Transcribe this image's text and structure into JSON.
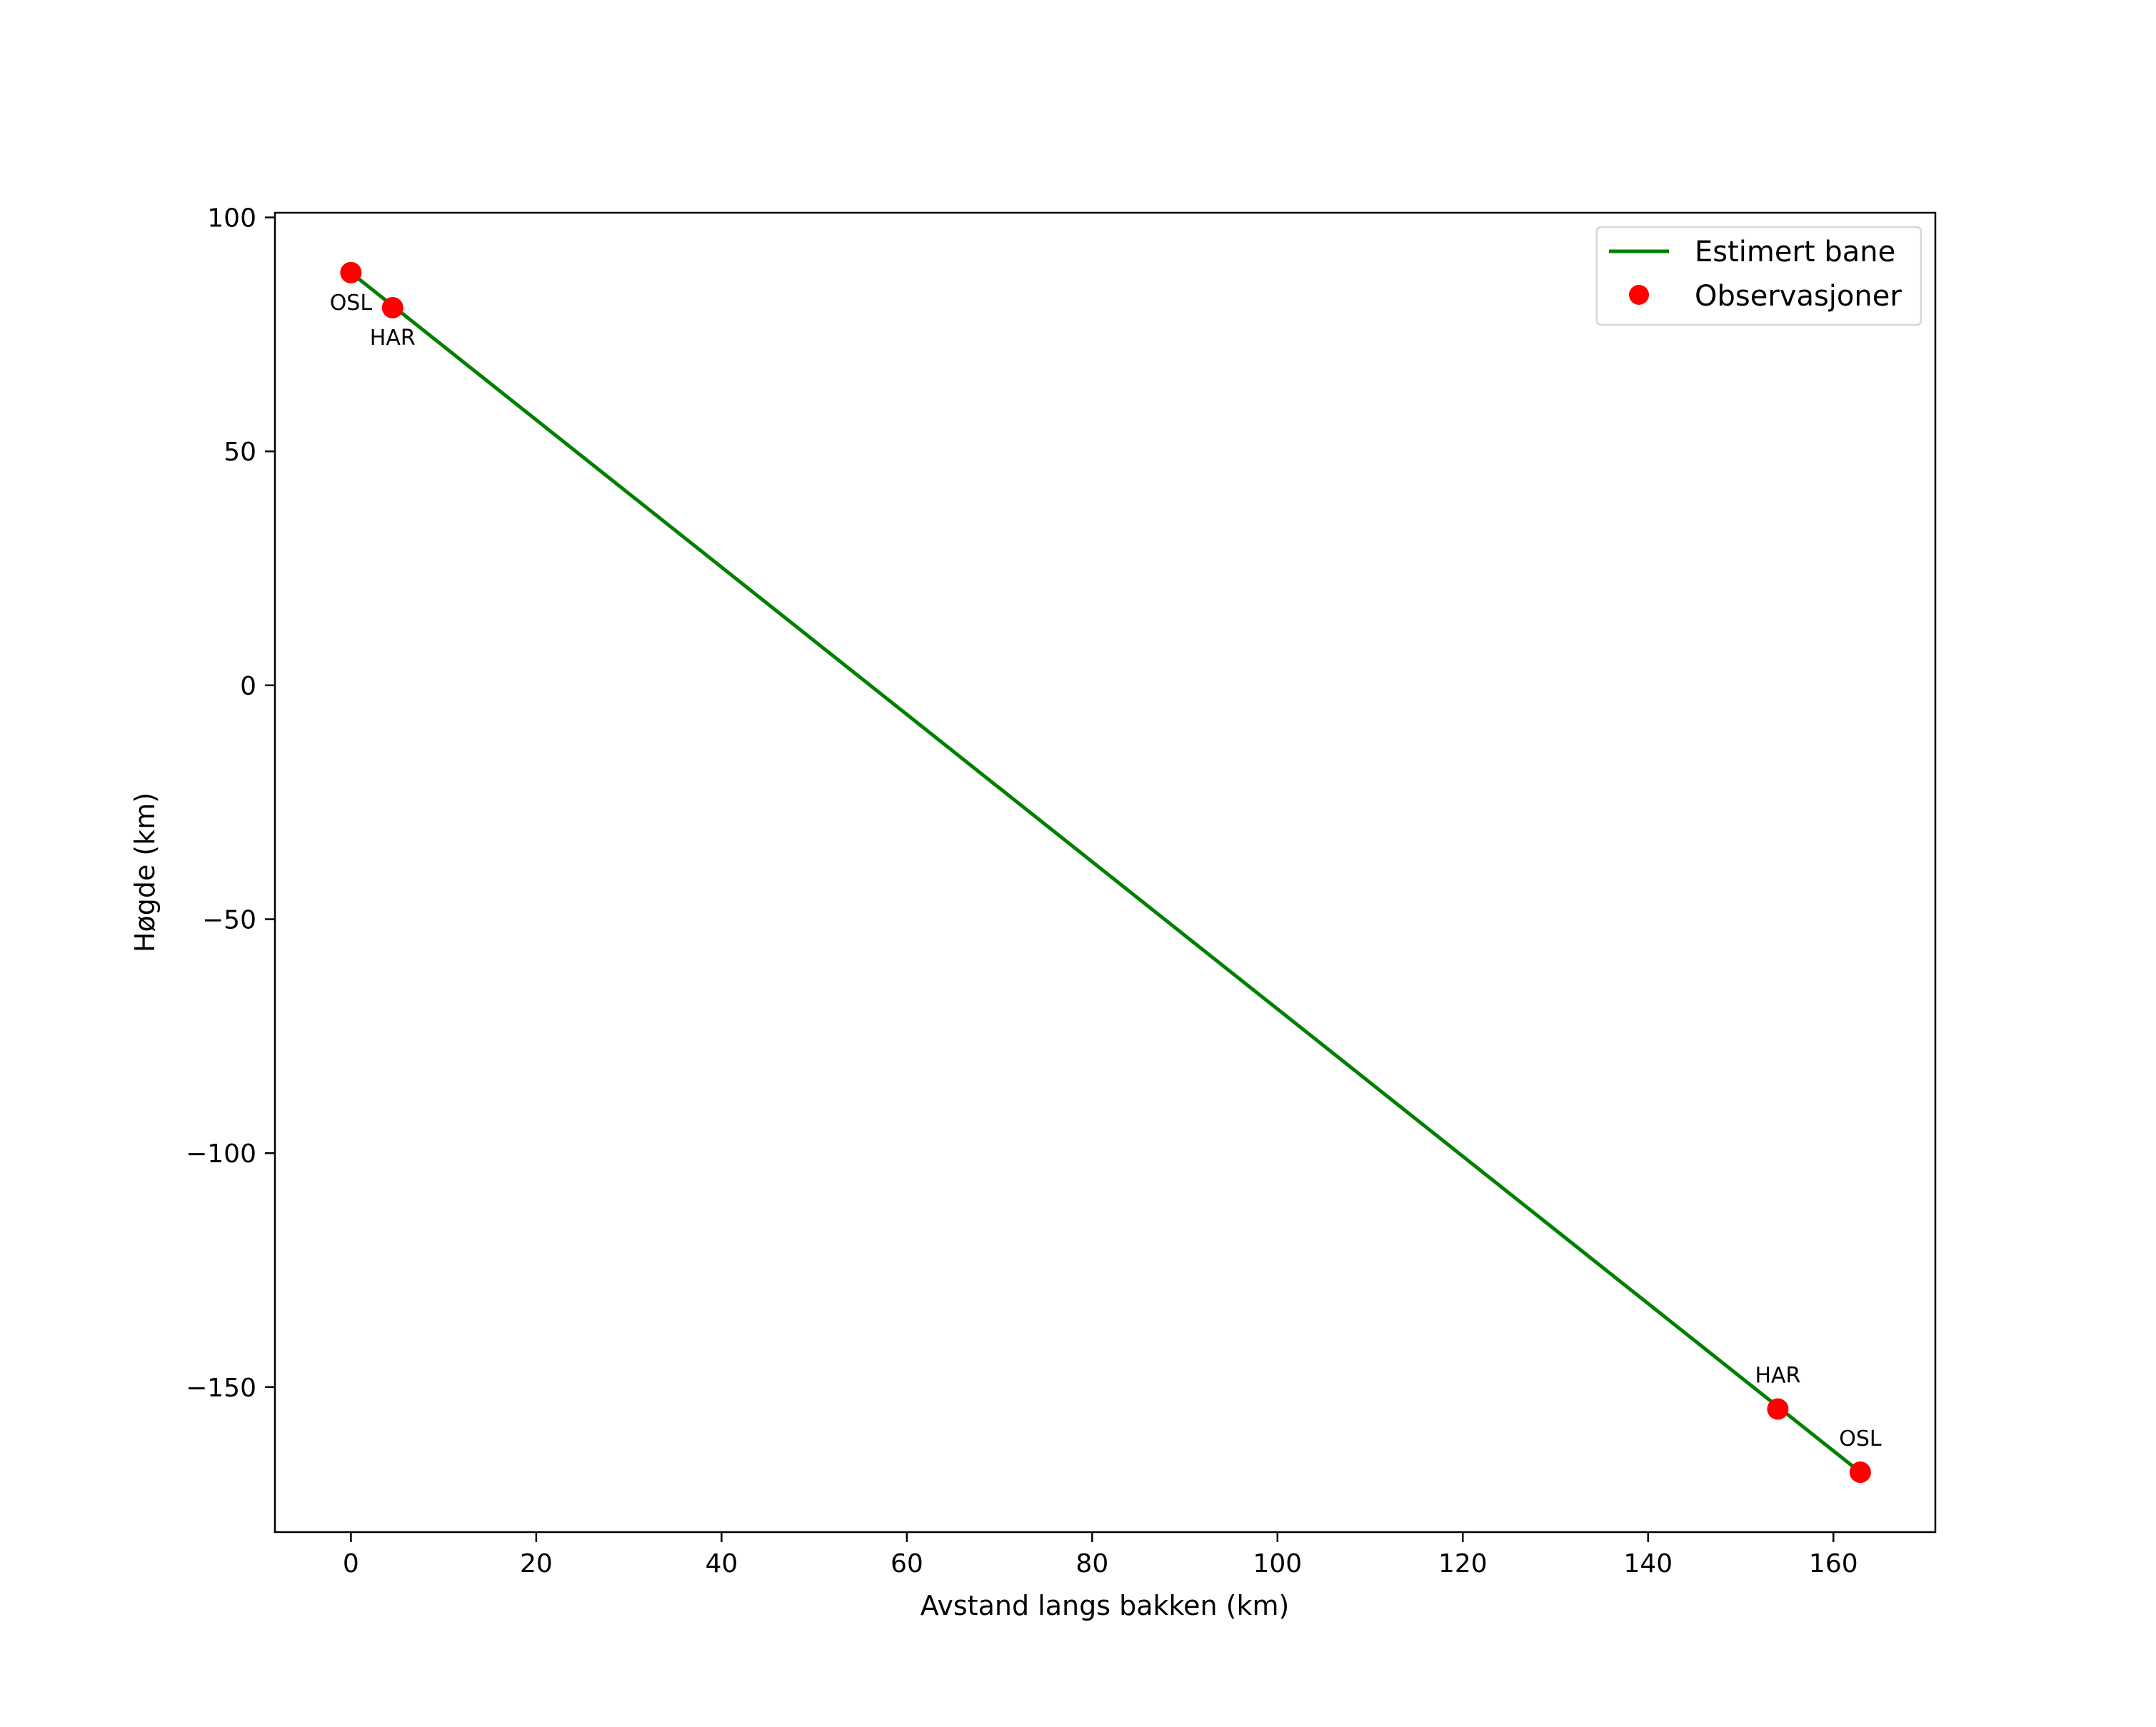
{
  "chart_data": {
    "type": "line",
    "title": "",
    "xlabel": "Avstand langs bakken (km)",
    "ylabel": "Høgde (km)",
    "xlim": [
      -8.2,
      171.0
    ],
    "ylim": [
      -181.0,
      101.0
    ],
    "xticks": [
      0,
      20,
      40,
      60,
      80,
      100,
      120,
      140,
      160
    ],
    "xtick_labels": [
      "0",
      "20",
      "40",
      "60",
      "80",
      "100",
      "120",
      "140",
      "160"
    ],
    "yticks": [
      100,
      50,
      0,
      -50,
      -100,
      -150
    ],
    "ytick_labels": [
      "100",
      "50",
      "0",
      "−50",
      "−100",
      "−150"
    ],
    "grid": false,
    "legend_position": "upper right",
    "series": [
      {
        "name": "Estimert bane",
        "kind": "line",
        "color": "#008000",
        "x": [
          0.0,
          162.9
        ],
        "y": [
          88.2,
          -168.2
        ]
      },
      {
        "name": "Observasjoner",
        "kind": "scatter",
        "color": "#ff0000",
        "points": [
          {
            "label": "OSL",
            "x": 0.0,
            "y": 88.2,
            "label_pos": "below-left"
          },
          {
            "label": "HAR",
            "x": 4.5,
            "y": 80.7,
            "label_pos": "below"
          },
          {
            "label": "HAR",
            "x": 154.0,
            "y": -154.7,
            "label_pos": "above"
          },
          {
            "label": "OSL",
            "x": 162.9,
            "y": -168.2,
            "label_pos": "above"
          }
        ]
      }
    ]
  },
  "legend": {
    "items": [
      {
        "label": "Estimert bane",
        "icon": "green-line-icon",
        "color": "#008000"
      },
      {
        "label": "Observasjoner",
        "icon": "red-dot-icon",
        "color": "#ff0000"
      }
    ]
  }
}
